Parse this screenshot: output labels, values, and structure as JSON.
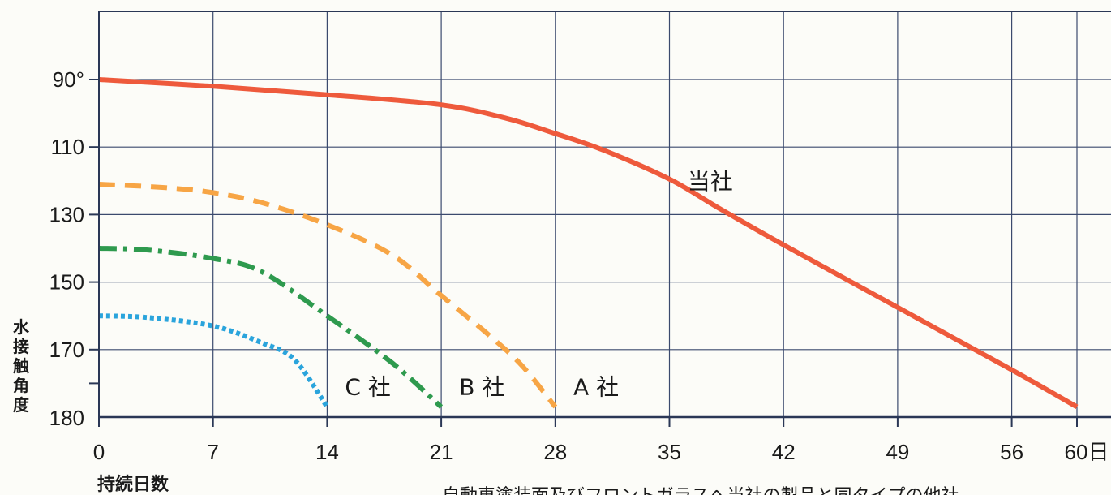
{
  "chart_data": {
    "type": "line",
    "title": "",
    "xlabel": "持続日数",
    "ylabel": "水接触角度",
    "x_ticks": [
      {
        "value": 0,
        "label": "0"
      },
      {
        "value": 7,
        "label": "7"
      },
      {
        "value": 14,
        "label": "14"
      },
      {
        "value": 21,
        "label": "21"
      },
      {
        "value": 28,
        "label": "28"
      },
      {
        "value": 35,
        "label": "35"
      },
      {
        "value": 42,
        "label": "42"
      },
      {
        "value": 49,
        "label": "49"
      },
      {
        "value": 56,
        "label": "56"
      },
      {
        "value": 60,
        "label": "60日"
      }
    ],
    "y_ticks": [
      {
        "value": 90,
        "label": "90°"
      },
      {
        "value": 110,
        "label": "110"
      },
      {
        "value": 130,
        "label": "130"
      },
      {
        "value": 150,
        "label": "150"
      },
      {
        "value": 170,
        "label": "170"
      },
      {
        "value": 180,
        "label": "180"
      }
    ],
    "xlim": [
      0,
      60
    ],
    "ylim": [
      70,
      180
    ],
    "y_inverted": true,
    "grid": true,
    "series": [
      {
        "name": "当社",
        "color": "#ee5a3c",
        "style": "solid",
        "points": [
          [
            0,
            90
          ],
          [
            7,
            92
          ],
          [
            14,
            94.5
          ],
          [
            21,
            97.5
          ],
          [
            25,
            101.5
          ],
          [
            28,
            106
          ],
          [
            31,
            111
          ],
          [
            35,
            119.5
          ],
          [
            38,
            128
          ],
          [
            42,
            139
          ],
          [
            49,
            157.5
          ],
          [
            56,
            176
          ],
          [
            60,
            187
          ]
        ]
      },
      {
        "name": "A 社",
        "color": "#f7a545",
        "style": "dashed",
        "points": [
          [
            0,
            121
          ],
          [
            4,
            122
          ],
          [
            7,
            123.5
          ],
          [
            10,
            126.5
          ],
          [
            14,
            133
          ],
          [
            18,
            142
          ],
          [
            21,
            154
          ],
          [
            24,
            166
          ],
          [
            26,
            175
          ],
          [
            28,
            187
          ]
        ]
      },
      {
        "name": "B 社",
        "color": "#2e9a4e",
        "style": "dashdot",
        "points": [
          [
            0,
            140
          ],
          [
            3,
            140.5
          ],
          [
            7,
            143
          ],
          [
            10,
            147
          ],
          [
            14,
            160
          ],
          [
            18,
            174
          ],
          [
            21,
            187
          ]
        ]
      },
      {
        "name": "C 社",
        "color": "#2aa4dc",
        "style": "dotted",
        "points": [
          [
            0,
            160
          ],
          [
            3,
            160.5
          ],
          [
            7,
            163
          ],
          [
            10,
            168
          ],
          [
            12,
            173
          ],
          [
            14,
            187
          ]
        ]
      }
    ],
    "annotations": [
      {
        "text": "当社",
        "x": 37.5,
        "y": 120
      },
      {
        "text": "A 社",
        "x": 30.5,
        "y": 181
      },
      {
        "text": "B 社",
        "x": 23.5,
        "y": 181
      },
      {
        "text": "C 社",
        "x": 16.5,
        "y": 181
      }
    ]
  },
  "footer": {
    "caption": "自動車塗装面及びフロントガラスへ当社の製品と同タイプの他社"
  }
}
